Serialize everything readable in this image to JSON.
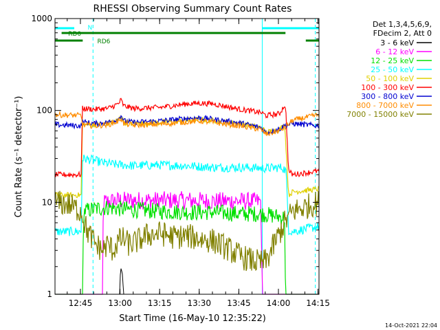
{
  "chart_data": {
    "type": "line",
    "title": "RHESSI Observing Summary Count Rates",
    "ylabel": "Count Rate (s⁻¹ detector⁻¹)",
    "xlabel": "Start Time (16-May-10 12:35:22)",
    "yscale": "log",
    "ylim": [
      1,
      1000
    ],
    "xlim_minutes": [
      0,
      100
    ],
    "y_ticks": [
      "1",
      "10",
      "100",
      "1000"
    ],
    "x_ticks": [
      {
        "t": 9.63,
        "label": "12:45"
      },
      {
        "t": 24.63,
        "label": "13:00"
      },
      {
        "t": 39.63,
        "label": "13:15"
      },
      {
        "t": 54.63,
        "label": "13:30"
      },
      {
        "t": 69.63,
        "label": "13:45"
      },
      {
        "t": 84.63,
        "label": "14:00"
      },
      {
        "t": 99.63,
        "label": "14:15"
      }
    ],
    "legend_header": [
      "Det 1,3,4,5,6,9,",
      "FDecim 2, Att 0"
    ],
    "legend_position": "top-right",
    "series": [
      {
        "name": "3 - 6 keV",
        "color": "#000000",
        "points": [
          [
            0,
            1
          ],
          [
            24.5,
            1
          ],
          [
            24.6,
            1.5
          ],
          [
            25.0,
            1.9
          ],
          [
            25.5,
            1.7
          ],
          [
            26.0,
            1
          ],
          [
            100,
            1
          ]
        ]
      },
      {
        "name": "6 - 12 keV",
        "color": "#ff00ff",
        "points": [
          [
            0,
            1
          ],
          [
            18,
            1
          ],
          [
            18.3,
            10
          ],
          [
            24,
            10.5
          ],
          [
            30,
            10.5
          ],
          [
            40,
            10.5
          ],
          [
            50,
            10.5
          ],
          [
            60,
            10.3
          ],
          [
            70,
            10.3
          ],
          [
            78,
            10.2
          ],
          [
            78.5,
            1
          ],
          [
            100,
            1
          ]
        ]
      },
      {
        "name": "12 - 25 keV",
        "color": "#00e000",
        "points": [
          [
            0,
            1
          ],
          [
            10.5,
            1
          ],
          [
            10.8,
            8
          ],
          [
            15,
            8.5
          ],
          [
            20,
            8.8
          ],
          [
            25,
            8.5
          ],
          [
            30,
            8.3
          ],
          [
            40,
            8.0
          ],
          [
            50,
            7.8
          ],
          [
            60,
            7.8
          ],
          [
            70,
            7.5
          ],
          [
            78,
            7.5
          ],
          [
            85,
            7.0
          ],
          [
            87,
            6.8
          ],
          [
            87.3,
            1
          ],
          [
            100,
            1
          ]
        ]
      },
      {
        "name": "25 - 50 keV",
        "color": "#00ffff",
        "points": [
          [
            0,
            4.8
          ],
          [
            10,
            4.8
          ],
          [
            10.3,
            30
          ],
          [
            14,
            29
          ],
          [
            18,
            27
          ],
          [
            22,
            26
          ],
          [
            30,
            25
          ],
          [
            40,
            25.5
          ],
          [
            50,
            25
          ],
          [
            60,
            24
          ],
          [
            70,
            24
          ],
          [
            80,
            23.5
          ],
          [
            86,
            24
          ],
          [
            87.5,
            22
          ],
          [
            88.5,
            5
          ],
          [
            90,
            4.8
          ],
          [
            100,
            5.5
          ]
        ]
      },
      {
        "name": "50 - 100 keV",
        "color": "#e0d000",
        "points": [
          [
            0,
            12
          ],
          [
            10,
            12
          ],
          [
            10.3,
            70
          ],
          [
            15,
            70
          ],
          [
            20,
            72
          ],
          [
            24,
            78
          ],
          [
            25,
            87
          ],
          [
            26,
            75
          ],
          [
            30,
            72
          ],
          [
            40,
            74
          ],
          [
            50,
            78
          ],
          [
            55,
            80
          ],
          [
            60,
            78
          ],
          [
            70,
            72
          ],
          [
            78,
            65
          ],
          [
            80,
            58
          ],
          [
            85,
            62
          ],
          [
            87,
            70
          ],
          [
            87.5,
            40
          ],
          [
            88.5,
            12
          ],
          [
            90,
            13
          ],
          [
            100,
            14
          ]
        ]
      },
      {
        "name": "100 - 300 keV",
        "color": "#ff0000",
        "points": [
          [
            0,
            20
          ],
          [
            10,
            20
          ],
          [
            10.3,
            105
          ],
          [
            15,
            103
          ],
          [
            20,
            105
          ],
          [
            24,
            118
          ],
          [
            25,
            130
          ],
          [
            26,
            112
          ],
          [
            30,
            105
          ],
          [
            40,
            108
          ],
          [
            50,
            118
          ],
          [
            55,
            120
          ],
          [
            60,
            118
          ],
          [
            70,
            103
          ],
          [
            78,
            95
          ],
          [
            80,
            88
          ],
          [
            85,
            92
          ],
          [
            87,
            115
          ],
          [
            87.5,
            90
          ],
          [
            88.5,
            22
          ],
          [
            90,
            20
          ],
          [
            100,
            22
          ]
        ]
      },
      {
        "name": "300 - 800 keV",
        "color": "#0000d0",
        "points": [
          [
            0,
            70
          ],
          [
            10,
            68
          ],
          [
            10.3,
            75
          ],
          [
            15,
            72
          ],
          [
            20,
            74
          ],
          [
            24,
            80
          ],
          [
            25,
            90
          ],
          [
            26,
            77
          ],
          [
            30,
            74
          ],
          [
            40,
            77
          ],
          [
            50,
            82
          ],
          [
            55,
            83
          ],
          [
            60,
            80
          ],
          [
            70,
            73
          ],
          [
            78,
            65
          ],
          [
            80,
            57
          ],
          [
            85,
            63
          ],
          [
            87,
            68
          ],
          [
            90,
            72
          ],
          [
            100,
            68
          ]
        ]
      },
      {
        "name": "800 - 7000 keV",
        "color": "#ff8c00",
        "points": [
          [
            0,
            90
          ],
          [
            10,
            88
          ],
          [
            10.3,
            70
          ],
          [
            15,
            68
          ],
          [
            20,
            70
          ],
          [
            24,
            76
          ],
          [
            25,
            83
          ],
          [
            26,
            72
          ],
          [
            30,
            69
          ],
          [
            40,
            71
          ],
          [
            50,
            75
          ],
          [
            55,
            77
          ],
          [
            60,
            74
          ],
          [
            70,
            68
          ],
          [
            78,
            62
          ],
          [
            80,
            55
          ],
          [
            85,
            60
          ],
          [
            87,
            65
          ],
          [
            90,
            78
          ],
          [
            100,
            90
          ]
        ]
      },
      {
        "name": "7000 - 15000 keV",
        "color": "#808000",
        "points": [
          [
            0,
            10
          ],
          [
            5,
            9.5
          ],
          [
            10,
            8
          ],
          [
            12,
            5
          ],
          [
            15,
            3.6
          ],
          [
            18,
            3.0
          ],
          [
            20,
            3.5
          ],
          [
            22,
            3.0
          ],
          [
            24,
            3.8
          ],
          [
            26,
            4.0
          ],
          [
            28,
            3.5
          ],
          [
            30,
            3.6
          ],
          [
            35,
            4.4
          ],
          [
            40,
            4.6
          ],
          [
            45,
            4.2
          ],
          [
            50,
            4.3
          ],
          [
            55,
            4.0
          ],
          [
            60,
            3.8
          ],
          [
            65,
            3.2
          ],
          [
            70,
            2.6
          ],
          [
            75,
            2.3
          ],
          [
            78,
            2.2
          ],
          [
            80,
            2.3
          ],
          [
            83,
            3.5
          ],
          [
            87,
            6
          ],
          [
            90,
            8
          ],
          [
            100,
            10
          ]
        ]
      }
    ],
    "annotations": [
      {
        "text": "N",
        "color": "#00ffff",
        "segments": [
          [
            0,
            7.3
          ],
          [
            78.5,
            100
          ]
        ]
      },
      {
        "text": "RD0",
        "color": "#008000",
        "segments": [
          [
            2.5,
            87.3
          ]
        ]
      },
      {
        "text": "RD6",
        "color": "#008000",
        "segments": [
          [
            0,
            10.5
          ],
          [
            95,
            100
          ]
        ]
      }
    ],
    "vlines": [
      {
        "t": 14.4,
        "color": "#00ffff",
        "style": "dashed"
      },
      {
        "t": 78.5,
        "color": "#00ffff",
        "style": "solid"
      },
      {
        "t": 98.6,
        "color": "#00ffff",
        "style": "dashed"
      }
    ]
  },
  "footer": {
    "timestamp": "14-Oct-2021 22:04"
  }
}
